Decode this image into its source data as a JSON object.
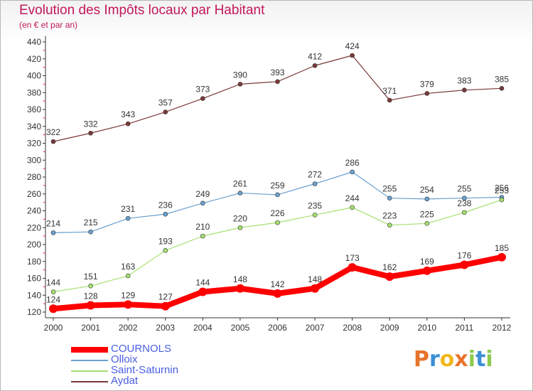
{
  "header": {
    "title": "Evolution des Impôts locaux par Habitant",
    "subtitle": "(en € et par an)"
  },
  "brand": {
    "logo_text": "Proxiti",
    "colors": [
      "#e8742b",
      "#3b8fd6",
      "#f0b81e",
      "#e8742b",
      "#8ccb4d",
      "#3b8fd6",
      "#8ccb4d"
    ]
  },
  "chart_data": {
    "type": "line",
    "x": [
      "2000",
      "2001",
      "2002",
      "2003",
      "2004",
      "2005",
      "2006",
      "2007",
      "2008",
      "2009",
      "2010",
      "2011",
      "2012"
    ],
    "yticks": [
      120,
      140,
      160,
      180,
      200,
      220,
      240,
      260,
      280,
      300,
      320,
      340,
      360,
      380,
      400,
      420,
      440
    ],
    "ylim": [
      116,
      442
    ],
    "grid": false,
    "legend_position": "bottom-left",
    "series": [
      {
        "name": "COURNOLS",
        "color": "#ff0000",
        "values": [
          124,
          128,
          129,
          127,
          144,
          148,
          142,
          148,
          173,
          162,
          169,
          176,
          185
        ]
      },
      {
        "name": "Olloix",
        "color": "#6aa0cf",
        "values": [
          214,
          215,
          231,
          236,
          249,
          261,
          259,
          272,
          286,
          255,
          254,
          255,
          256
        ]
      },
      {
        "name": "Saint-Saturnin",
        "color": "#a6e070",
        "values": [
          144,
          151,
          163,
          193,
          210,
          220,
          226,
          235,
          244,
          223,
          225,
          238,
          253
        ]
      },
      {
        "name": "Aydat",
        "color": "#7a3838",
        "values": [
          322,
          332,
          343,
          357,
          373,
          390,
          393,
          412,
          424,
          371,
          379,
          383,
          385
        ]
      }
    ]
  }
}
